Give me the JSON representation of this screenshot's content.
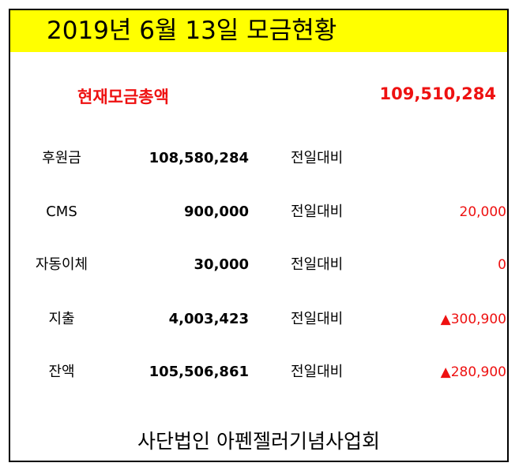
{
  "title": "2019년 6월 13일 모금현황",
  "total": {
    "label": "현재모금총액",
    "value": "109,510,284"
  },
  "rows": [
    {
      "label": "후원금",
      "amount": "108,580,284",
      "compare": "전일대비",
      "diff": ""
    },
    {
      "label": "CMS",
      "amount": "900,000",
      "compare": "전일대비",
      "diff": "20,000"
    },
    {
      "label": "자동이체",
      "amount": "30,000",
      "compare": "전일대비",
      "diff": "0"
    },
    {
      "label": "지출",
      "amount": "4,003,423",
      "compare": "전일대비",
      "diff": "▲300,900"
    },
    {
      "label": "잔액",
      "amount": "105,506,861",
      "compare": "전일대비",
      "diff": "▲280,900"
    }
  ],
  "footer": "사단법인 아펜젤러기념사업회",
  "colors": {
    "title_bar": "#ffff00",
    "accent_red": "#ee1111",
    "border": "#000000"
  }
}
